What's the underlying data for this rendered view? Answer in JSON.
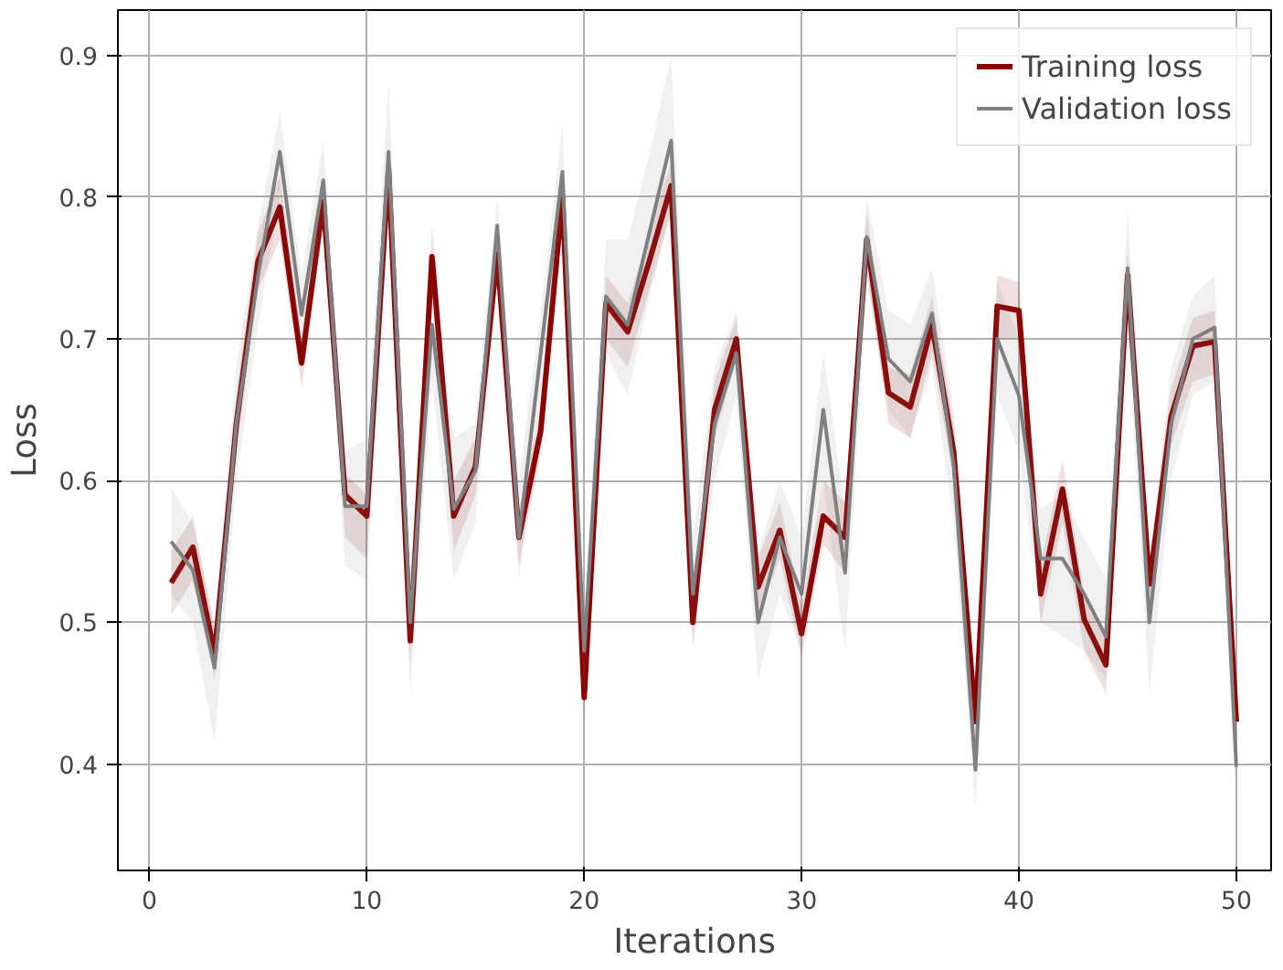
{
  "chart_data": {
    "type": "line",
    "xlabel": "Iterations",
    "ylabel": "Loss",
    "x": [
      1,
      2,
      3,
      4,
      5,
      6,
      7,
      8,
      9,
      10,
      11,
      12,
      13,
      14,
      15,
      16,
      17,
      18,
      19,
      20,
      21,
      22,
      23,
      24,
      25,
      26,
      27,
      28,
      29,
      30,
      31,
      32,
      33,
      34,
      35,
      36,
      37,
      38,
      39,
      40,
      41,
      42,
      43,
      44,
      45,
      46,
      47,
      48,
      49,
      50
    ],
    "xlim": [
      -1.45,
      51.6
    ],
    "ylim": [
      0.325,
      0.932
    ],
    "xticks": [
      0,
      10,
      20,
      30,
      40,
      50
    ],
    "yticks": [
      0.4,
      0.5,
      0.6,
      0.7,
      0.8,
      0.9
    ],
    "grid": true,
    "legend": "top right",
    "line_style": "solid",
    "series": [
      {
        "name": "Training loss",
        "color": "#8b0000",
        "values": [
          0.528,
          0.553,
          0.478,
          0.64,
          0.755,
          0.793,
          0.683,
          0.797,
          0.59,
          0.575,
          0.82,
          0.487,
          0.758,
          0.575,
          0.61,
          0.76,
          0.56,
          0.635,
          0.8,
          0.447,
          0.725,
          0.705,
          0.755,
          0.808,
          0.5,
          0.65,
          0.7,
          0.525,
          0.565,
          0.492,
          0.575,
          0.56,
          0.77,
          0.662,
          0.652,
          0.71,
          0.62,
          0.43,
          0.723,
          0.72,
          0.52,
          0.594,
          0.502,
          0.47,
          0.745,
          0.527,
          0.645,
          0.695,
          0.698,
          0.43
        ],
        "lower": [
          0.505,
          0.53,
          0.46,
          0.62,
          0.735,
          0.77,
          0.665,
          0.78,
          0.56,
          0.545,
          0.8,
          0.47,
          0.74,
          0.55,
          0.59,
          0.74,
          0.54,
          0.62,
          0.78,
          0.43,
          0.7,
          0.68,
          0.735,
          0.79,
          0.485,
          0.63,
          0.685,
          0.505,
          0.545,
          0.475,
          0.555,
          0.535,
          0.75,
          0.64,
          0.63,
          0.69,
          0.6,
          0.415,
          0.7,
          0.7,
          0.5,
          0.57,
          0.48,
          0.45,
          0.725,
          0.51,
          0.625,
          0.67,
          0.675,
          0.415
        ],
        "upper": [
          0.55,
          0.575,
          0.495,
          0.66,
          0.775,
          0.815,
          0.7,
          0.815,
          0.605,
          0.59,
          0.84,
          0.505,
          0.78,
          0.6,
          0.63,
          0.78,
          0.58,
          0.65,
          0.82,
          0.465,
          0.745,
          0.725,
          0.775,
          0.825,
          0.515,
          0.67,
          0.715,
          0.545,
          0.585,
          0.51,
          0.6,
          0.585,
          0.79,
          0.68,
          0.675,
          0.73,
          0.64,
          0.445,
          0.745,
          0.74,
          0.54,
          0.615,
          0.52,
          0.49,
          0.765,
          0.545,
          0.665,
          0.715,
          0.72,
          0.445
        ]
      },
      {
        "name": "Validation loss",
        "color": "#808080",
        "values": [
          0.557,
          0.537,
          0.468,
          0.64,
          0.745,
          0.832,
          0.717,
          0.812,
          0.582,
          0.582,
          0.832,
          0.5,
          0.71,
          0.58,
          0.607,
          0.78,
          0.56,
          0.69,
          0.818,
          0.48,
          0.73,
          0.71,
          0.775,
          0.84,
          0.52,
          0.64,
          0.69,
          0.5,
          0.56,
          0.52,
          0.65,
          0.535,
          0.772,
          0.686,
          0.67,
          0.718,
          0.61,
          0.396,
          0.7,
          0.66,
          0.545,
          0.545,
          0.52,
          0.49,
          0.75,
          0.5,
          0.64,
          0.7,
          0.708,
          0.398
        ],
        "lower": [
          0.52,
          0.5,
          0.415,
          0.6,
          0.71,
          0.8,
          0.69,
          0.78,
          0.54,
          0.53,
          0.79,
          0.45,
          0.67,
          0.53,
          0.57,
          0.74,
          0.53,
          0.66,
          0.79,
          0.45,
          0.69,
          0.66,
          0.73,
          0.79,
          0.48,
          0.6,
          0.66,
          0.46,
          0.52,
          0.48,
          0.6,
          0.48,
          0.74,
          0.65,
          0.63,
          0.68,
          0.57,
          0.37,
          0.66,
          0.62,
          0.5,
          0.49,
          0.48,
          0.46,
          0.71,
          0.45,
          0.6,
          0.66,
          0.67,
          0.37
        ],
        "upper": [
          0.595,
          0.57,
          0.5,
          0.68,
          0.78,
          0.86,
          0.745,
          0.84,
          0.62,
          0.63,
          0.88,
          0.54,
          0.74,
          0.63,
          0.64,
          0.8,
          0.6,
          0.72,
          0.85,
          0.51,
          0.77,
          0.77,
          0.83,
          0.9,
          0.56,
          0.68,
          0.72,
          0.55,
          0.6,
          0.56,
          0.69,
          0.58,
          0.8,
          0.72,
          0.71,
          0.75,
          0.65,
          0.42,
          0.74,
          0.7,
          0.58,
          0.59,
          0.56,
          0.53,
          0.79,
          0.54,
          0.68,
          0.73,
          0.745,
          0.42
        ]
      }
    ]
  }
}
